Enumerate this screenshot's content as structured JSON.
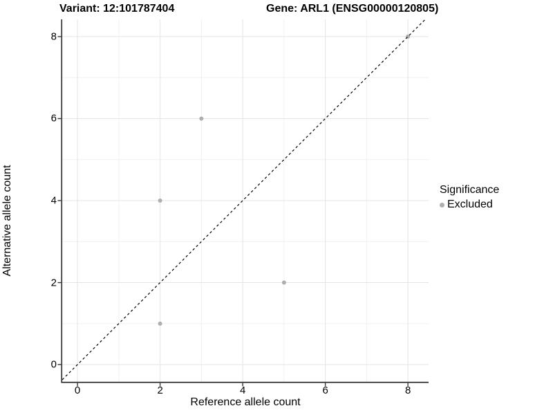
{
  "header": {
    "variant_title": "Variant: 12:101787404",
    "gene_title": "Gene: ARL1 (ENSG00000120805)"
  },
  "legend": {
    "title": "Significance",
    "items": [
      {
        "label": "Excluded",
        "color": "#aeaeae"
      }
    ]
  },
  "chart_data": {
    "type": "scatter",
    "title": "Variant: 12:101787404  /  Gene: ARL1 (ENSG00000120805)",
    "xlabel": "Reference allele count",
    "ylabel": "Alternative allele count",
    "xlim": [
      -0.37,
      8.5
    ],
    "ylim": [
      -0.42,
      8.42
    ],
    "x_ticks": [
      0,
      2,
      4,
      6,
      8
    ],
    "y_ticks": [
      0,
      2,
      4,
      6,
      8
    ],
    "x_minor_ticks": [
      1,
      3,
      5,
      7
    ],
    "y_minor_ticks": [
      1,
      3,
      5,
      7
    ],
    "grid": true,
    "legend_position": "right",
    "series": [
      {
        "name": "Excluded",
        "color": "#aeaeae",
        "points": [
          [
            2,
            1
          ],
          [
            2,
            4
          ],
          [
            3,
            6
          ],
          [
            5,
            2
          ],
          [
            8,
            8
          ]
        ]
      }
    ],
    "reference_line": {
      "slope": 1,
      "intercept": 0,
      "style": "dashed",
      "color": "#000000"
    }
  },
  "colors": {
    "background": "#ffffff",
    "grid_major": "#e4e4e4",
    "grid_minor": "#f0f0f0",
    "axis_line": "#3f3f3f",
    "tick_mark": "#333333",
    "point": "#aeaeae",
    "text": "#000000"
  }
}
